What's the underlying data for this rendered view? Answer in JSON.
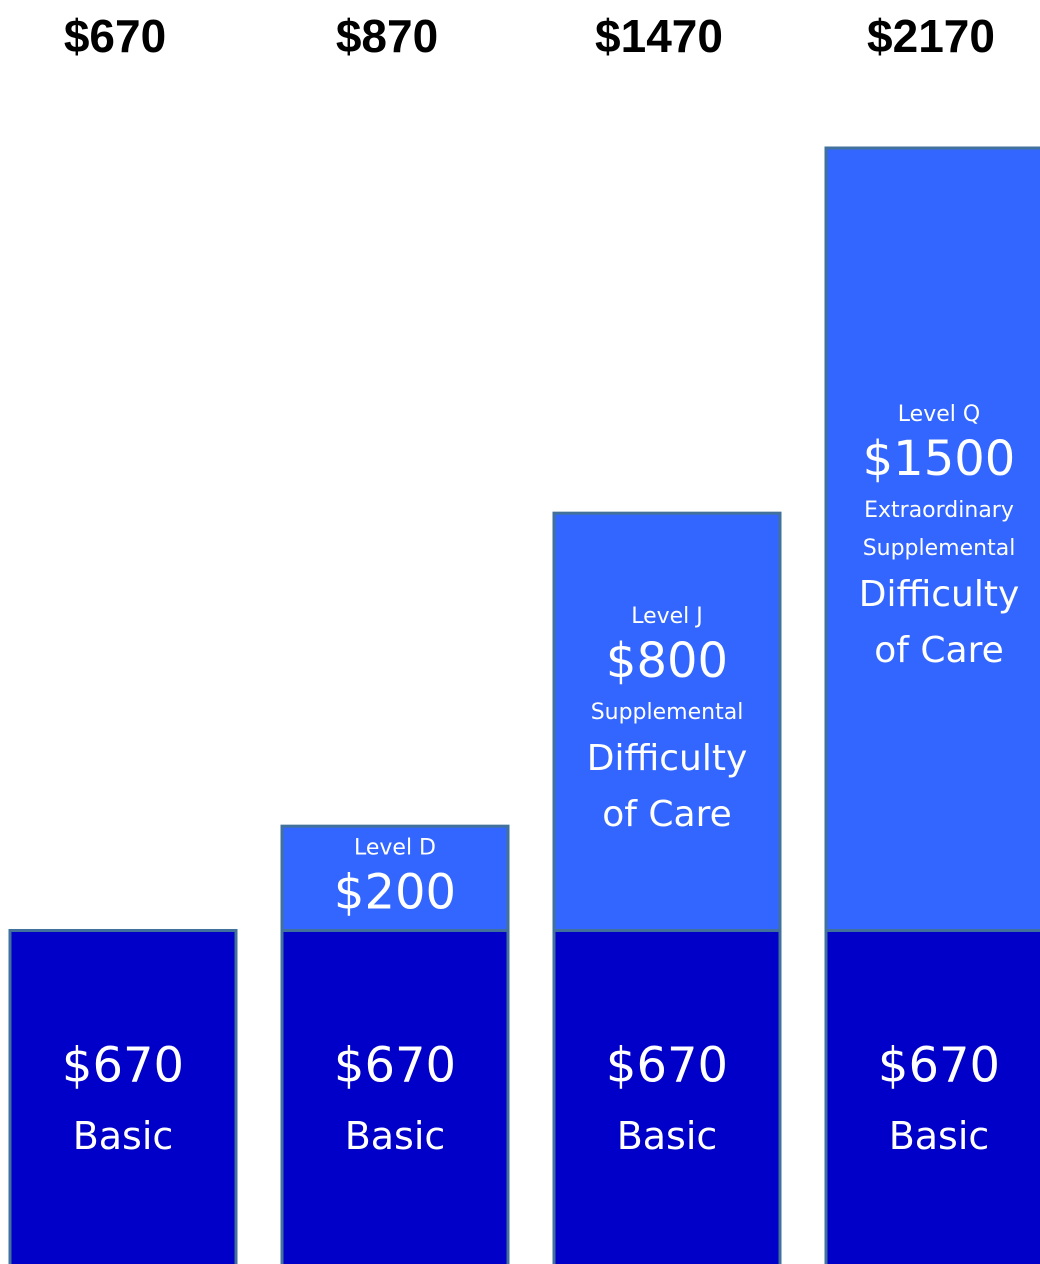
{
  "chart_data": {
    "type": "stacked-bar",
    "totals": [
      670,
      870,
      1470,
      2170
    ],
    "total_labels": [
      "$670",
      "$870",
      "$1470",
      "$2170"
    ],
    "series": [
      {
        "name": "Basic",
        "color": "#0000c8",
        "values": [
          670,
          670,
          670,
          670
        ],
        "value_labels": [
          "$670",
          "$670",
          "$670",
          "$670"
        ]
      },
      {
        "color": "#3366ff",
        "values": [
          null,
          200,
          800,
          1500
        ],
        "value_labels": [
          null,
          "$200",
          "$800",
          "$1500"
        ],
        "levels": [
          null,
          "Level  D",
          "Level J",
          "Level Q"
        ],
        "notes": [
          null,
          null,
          [
            "Supplemental"
          ],
          [
            "Extraordinary",
            "Supplemental"
          ]
        ],
        "details": [
          null,
          null,
          [
            "Difficulty",
            "of Care"
          ],
          [
            "Difficulty",
            "of Care"
          ]
        ]
      }
    ]
  }
}
